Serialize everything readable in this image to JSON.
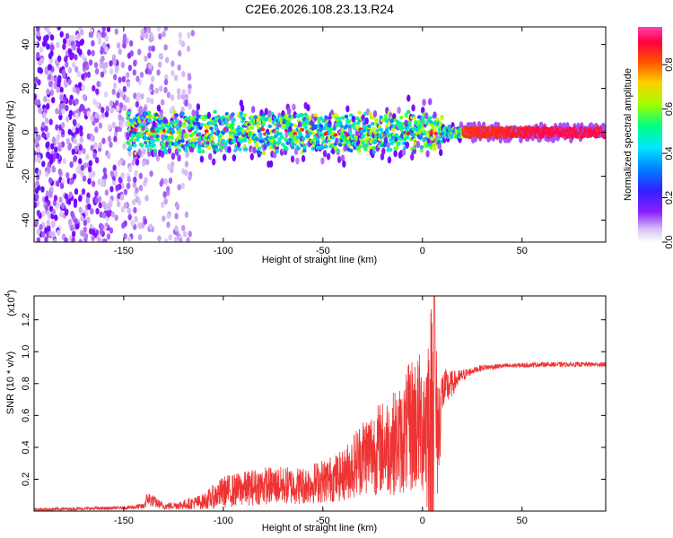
{
  "chart_data": [
    {
      "type": "heatmap",
      "title": "C2E6.2026.108.23.13.R24",
      "xlabel": "Height of straight line (km)",
      "ylabel": "Frequency (Hz)",
      "xlim": [
        -195,
        92
      ],
      "ylim": [
        -50,
        48
      ],
      "x_ticks": [
        -150,
        -100,
        -50,
        0,
        50
      ],
      "x_tick_labels": [
        "-150",
        "-100",
        "-50",
        "0",
        "50"
      ],
      "y_ticks": [
        -40,
        -20,
        0,
        20,
        40
      ],
      "y_tick_labels": [
        "-40",
        "-20",
        "0",
        "20",
        "40"
      ],
      "colorbar": {
        "label": "Normalized spectral amplitude",
        "range": [
          0,
          0.97
        ],
        "ticks": [
          0.0,
          0.2,
          0.4,
          0.6,
          0.8
        ],
        "tick_labels": [
          "0.0",
          "0.2",
          "0.4",
          "0.6",
          "0.8"
        ],
        "colormap": [
          "#ffffff",
          "#c9a8f2",
          "#7a00ff",
          "#2040ff",
          "#00e0ff",
          "#00ff60",
          "#c8ff00",
          "#ffd000",
          "#ff4000",
          "#ff0050",
          "#ff40c0"
        ]
      },
      "regions": [
        {
          "description": "noise",
          "x_range": [
            -195,
            -115
          ],
          "y_range": [
            -50,
            48
          ],
          "amplitude": [
            0.05,
            0.25
          ]
        },
        {
          "description": "signal band",
          "x_range": [
            -148,
            92
          ],
          "center_hz": 0,
          "amplitude_peak": 0.9
        }
      ]
    },
    {
      "type": "line",
      "xlabel": "Height of straight line (km)",
      "ylabel": "SNR (10 * v/v)",
      "y_scale_label": "(x10",
      "y_scale_exp": "4",
      "y_scale_close": ")",
      "xlim": [
        -195,
        92
      ],
      "ylim": [
        0,
        1.35
      ],
      "x_ticks": [
        -150,
        -100,
        -50,
        0,
        50
      ],
      "x_tick_labels": [
        "-150",
        "-100",
        "-50",
        "0",
        "50"
      ],
      "y_ticks": [
        0.2,
        0.4,
        0.6,
        0.8,
        1.0,
        1.2
      ],
      "y_tick_labels": [
        "0.2",
        "0.4",
        "0.6",
        "0.8",
        "1.0",
        "1.2"
      ],
      "color": "#ee3333",
      "envelope": {
        "x": [
          -195,
          -150,
          -140,
          -138,
          -130,
          -120,
          -110,
          -100,
          -80,
          -60,
          -40,
          -30,
          -20,
          -10,
          -5,
          0,
          5,
          8,
          10,
          15,
          20,
          25,
          30,
          40,
          60,
          92
        ],
        "mean": [
          0.01,
          0.02,
          0.03,
          0.08,
          0.03,
          0.04,
          0.06,
          0.12,
          0.16,
          0.16,
          0.22,
          0.35,
          0.4,
          0.45,
          0.55,
          0.55,
          0.6,
          0.5,
          0.75,
          0.8,
          0.85,
          0.88,
          0.9,
          0.91,
          0.92,
          0.92
        ],
        "spread": [
          0.01,
          0.01,
          0.02,
          0.05,
          0.02,
          0.03,
          0.05,
          0.1,
          0.12,
          0.12,
          0.16,
          0.25,
          0.3,
          0.35,
          0.45,
          0.45,
          0.8,
          0.4,
          0.15,
          0.08,
          0.04,
          0.02,
          0.02,
          0.015,
          0.015,
          0.015
        ],
        "max": 1.35,
        "max_at": 6
      }
    }
  ]
}
